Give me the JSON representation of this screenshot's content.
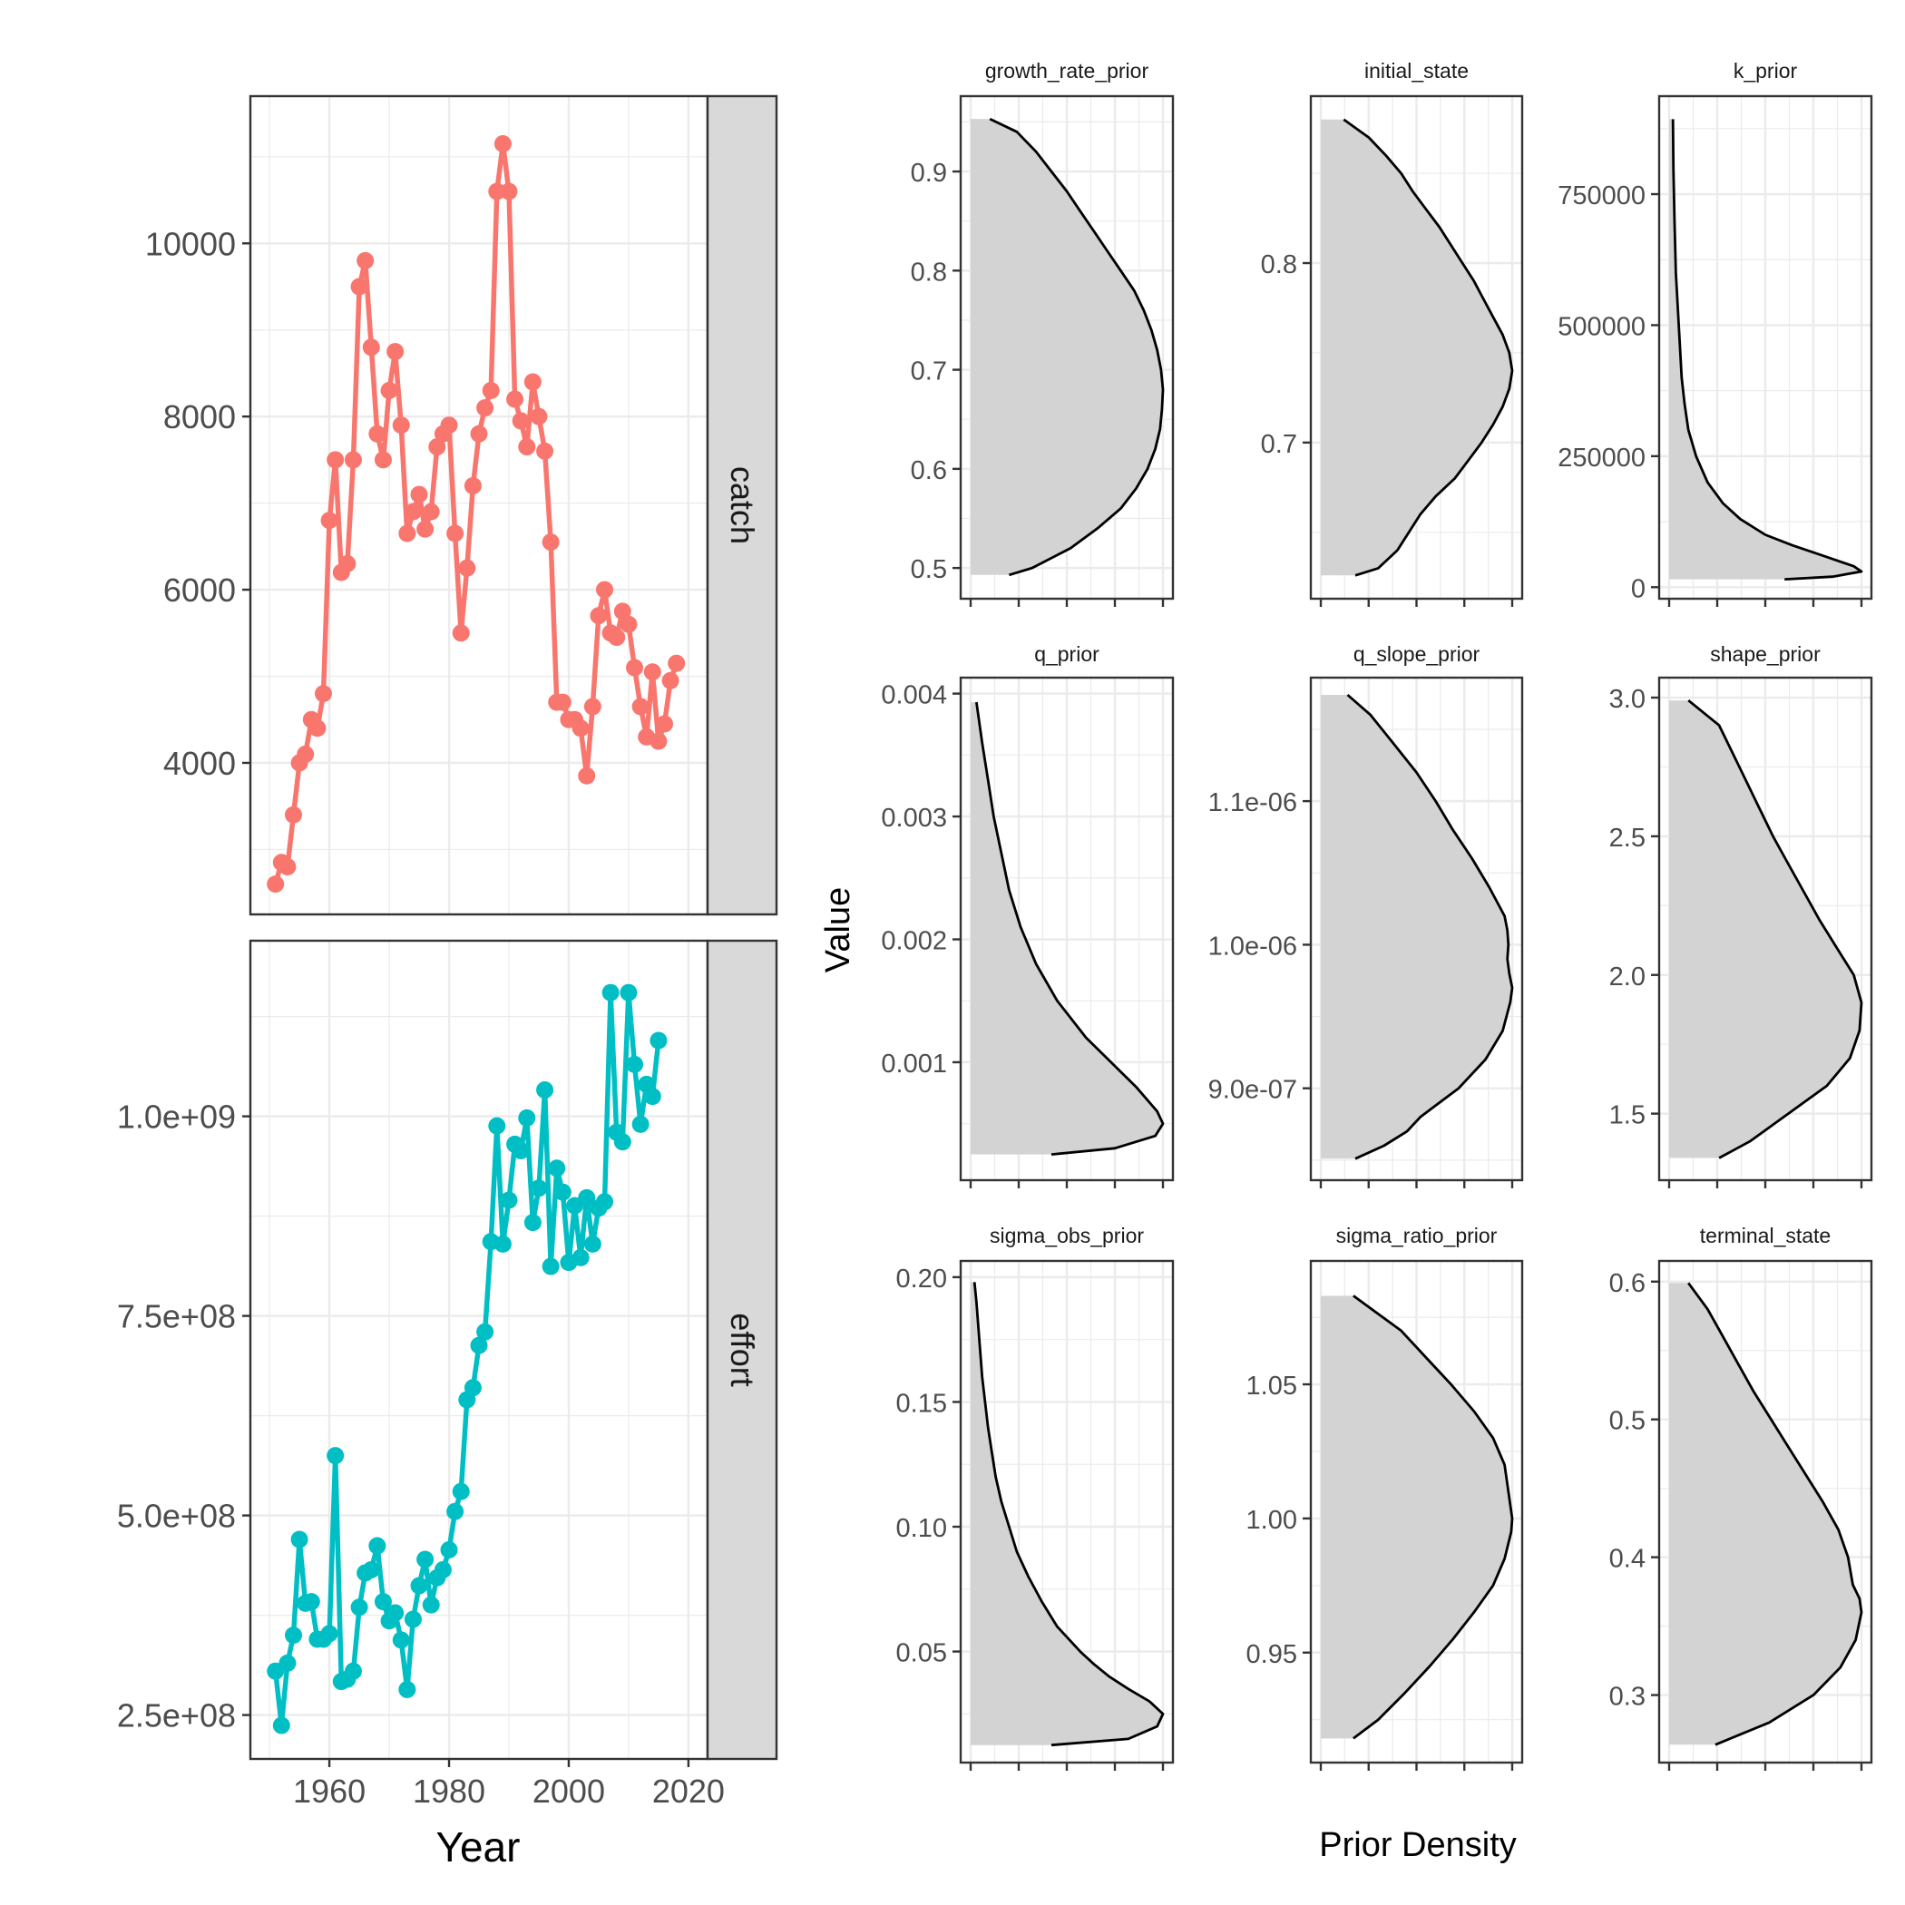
{
  "left_xlabel": "Year",
  "right_ylabel": "Value",
  "right_xlabel": "Prior Density",
  "colors": {
    "catch": "#F8766D",
    "effort": "#00BFC4",
    "strip": "#D9D9D9",
    "density_fill": "#D3D3D3",
    "density_line": "#000000",
    "grid": "#EBEBEB"
  },
  "chart_data": [
    {
      "type": "line",
      "facet": "catch",
      "x_axis": {
        "range": [
          1946.8,
          2023.2
        ],
        "ticks": [
          1960,
          1980,
          2000,
          2020
        ]
      },
      "y_axis": {
        "range": [
          2250,
          11700
        ],
        "ticks": [
          4000,
          6000,
          8000,
          10000
        ],
        "tick_labels": [
          "4000",
          "6000",
          "8000",
          "10000"
        ]
      },
      "x": [
        1951,
        1952,
        1953,
        1954,
        1955,
        1956,
        1957,
        1958,
        1959,
        1960,
        1961,
        1962,
        1963,
        1964,
        1965,
        1966,
        1967,
        1968,
        1969,
        1970,
        1971,
        1972,
        1973,
        1974,
        1975,
        1976,
        1977,
        1978,
        1979,
        1980,
        1981,
        1982,
        1983,
        1984,
        1985,
        1986,
        1987,
        1988,
        1989,
        1990,
        1991,
        1992,
        1993,
        1994,
        1995,
        1996,
        1997,
        1998,
        1999,
        2000,
        2001,
        2002,
        2003,
        2004,
        2005,
        2006,
        2007,
        2008,
        2009,
        2010,
        2011,
        2012,
        2013,
        2014,
        2015,
        2016,
        2017,
        2018
      ],
      "y": [
        2600,
        2850,
        2800,
        3400,
        4000,
        4100,
        4500,
        4400,
        4800,
        6800,
        7500,
        6200,
        6300,
        7500,
        9500,
        9800,
        8800,
        7800,
        7500,
        8300,
        8750,
        7900,
        6650,
        6900,
        7100,
        6700,
        6900,
        7650,
        7800,
        7900,
        6650,
        5500,
        6250,
        7200,
        7800,
        8100,
        8300,
        10600,
        11150,
        10600,
        8200,
        7950,
        7650,
        8400,
        8000,
        7600,
        6550,
        4700,
        4700,
        4500,
        4500,
        4400,
        3850,
        4650,
        5700,
        6000,
        5500,
        5450,
        5750,
        5600,
        5100,
        4650,
        4300,
        5050,
        4250,
        4450,
        4950,
        5150
      ]
    },
    {
      "type": "line",
      "facet": "effort",
      "x_axis": {
        "range": [
          1946.8,
          2023.2
        ],
        "ticks": [
          1960,
          1980,
          2000,
          2020
        ],
        "tick_labels": [
          "1960",
          "1980",
          "2000",
          "2020"
        ]
      },
      "y_axis": {
        "range": [
          195000000,
          1220000000
        ],
        "ticks": [
          250000000,
          500000000,
          750000000,
          1000000000
        ],
        "tick_labels": [
          "2.5e+08",
          "5.0e+08",
          "7.5e+08",
          "1.0e+09"
        ]
      },
      "x": [
        1951,
        1952,
        1953,
        1954,
        1955,
        1956,
        1957,
        1958,
        1959,
        1960,
        1961,
        1962,
        1963,
        1964,
        1965,
        1966,
        1967,
        1968,
        1969,
        1970,
        1971,
        1972,
        1973,
        1974,
        1975,
        1976,
        1977,
        1978,
        1979,
        1980,
        1981,
        1982,
        1983,
        1984,
        1985,
        1986,
        1987,
        1988,
        1989,
        1990,
        1991,
        1992,
        1993,
        1994,
        1995,
        1996,
        1997,
        1998,
        1999,
        2000,
        2001,
        2002,
        2003,
        2004,
        2005,
        2006,
        2007,
        2008,
        2009,
        2010,
        2011,
        2012,
        2013,
        2014,
        2015
      ],
      "y": [
        305000000,
        237000000,
        315000000,
        350000000,
        470000000,
        390000000,
        392000000,
        345000000,
        345000000,
        352000000,
        575000000,
        292000000,
        295000000,
        305000000,
        385000000,
        428000000,
        432000000,
        462000000,
        392000000,
        368000000,
        378000000,
        344000000,
        282000000,
        370000000,
        412000000,
        445000000,
        388000000,
        422000000,
        432000000,
        457000000,
        505000000,
        530000000,
        645000000,
        660000000,
        713000000,
        730000000,
        843000000,
        988000000,
        840000000,
        895000000,
        965000000,
        957000000,
        998000000,
        867000000,
        910000000,
        1033000000,
        812000000,
        935000000,
        905000000,
        817000000,
        888000000,
        823000000,
        898000000,
        840000000,
        885000000,
        893000000,
        1155000000,
        980000000,
        968000000,
        1155000000,
        1065000000,
        990000000,
        1040000000,
        1025000000,
        1095000000
      ]
    },
    {
      "type": "area",
      "facet": "growth_rate_prior",
      "y_axis": {
        "range": [
          0.469,
          0.976
        ],
        "ticks": [
          0.5,
          0.6,
          0.7,
          0.8,
          0.9
        ],
        "tick_labels": [
          "0.5",
          "0.6",
          "0.7",
          "0.8",
          "0.9"
        ]
      },
      "value": [
        0.493,
        0.5,
        0.52,
        0.54,
        0.56,
        0.58,
        0.6,
        0.62,
        0.64,
        0.66,
        0.68,
        0.7,
        0.72,
        0.74,
        0.76,
        0.78,
        0.8,
        0.82,
        0.84,
        0.86,
        0.88,
        0.9,
        0.92,
        0.94,
        0.953
      ],
      "density": [
        0.2,
        0.32,
        0.52,
        0.66,
        0.78,
        0.86,
        0.92,
        0.96,
        0.985,
        0.995,
        1.0,
        0.99,
        0.97,
        0.94,
        0.9,
        0.85,
        0.78,
        0.71,
        0.64,
        0.57,
        0.5,
        0.42,
        0.34,
        0.24,
        0.1
      ]
    },
    {
      "type": "area",
      "facet": "initial_state",
      "y_axis": {
        "range": [
          0.613,
          0.893
        ],
        "ticks": [
          0.7,
          0.8
        ],
        "tick_labels": [
          "0.7",
          "0.8"
        ]
      },
      "value": [
        0.626,
        0.63,
        0.64,
        0.65,
        0.66,
        0.67,
        0.68,
        0.69,
        0.7,
        0.71,
        0.72,
        0.73,
        0.74,
        0.75,
        0.76,
        0.77,
        0.78,
        0.79,
        0.8,
        0.81,
        0.82,
        0.83,
        0.84,
        0.85,
        0.86,
        0.87,
        0.88
      ],
      "density": [
        0.18,
        0.3,
        0.4,
        0.46,
        0.52,
        0.6,
        0.7,
        0.77,
        0.84,
        0.9,
        0.95,
        0.985,
        1.0,
        0.985,
        0.95,
        0.9,
        0.85,
        0.8,
        0.74,
        0.68,
        0.62,
        0.55,
        0.48,
        0.42,
        0.34,
        0.25,
        0.12
      ]
    },
    {
      "type": "area",
      "facet": "k_prior",
      "y_axis": {
        "range": [
          -22000,
          937000
        ],
        "ticks": [
          0,
          250000,
          500000,
          750000
        ],
        "tick_labels": [
          "0",
          "250000",
          "500000",
          "750000"
        ]
      },
      "value": [
        15000,
        20000,
        30000,
        40000,
        60000,
        80000,
        100000,
        130000,
        160000,
        200000,
        250000,
        300000,
        350000,
        400000,
        500000,
        600000,
        700000,
        800000,
        893000
      ],
      "density": [
        0.6,
        0.85,
        1.0,
        0.96,
        0.8,
        0.64,
        0.5,
        0.37,
        0.28,
        0.2,
        0.14,
        0.1,
        0.08,
        0.065,
        0.05,
        0.035,
        0.028,
        0.022,
        0.02
      ]
    },
    {
      "type": "area",
      "facet": "q_prior",
      "y_axis": {
        "range": [
          4e-05,
          0.00413
        ],
        "ticks": [
          0.001,
          0.002,
          0.003,
          0.004
        ],
        "tick_labels": [
          "0.001",
          "0.002",
          "0.003",
          "0.004"
        ]
      },
      "value": [
        0.00025,
        0.0003,
        0.0004,
        0.0005,
        0.0006,
        0.0008,
        0.001,
        0.0012,
        0.0015,
        0.0018,
        0.0021,
        0.0024,
        0.0027,
        0.003,
        0.0033,
        0.0036,
        0.00393
      ],
      "density": [
        0.42,
        0.75,
        0.96,
        1.0,
        0.97,
        0.86,
        0.73,
        0.6,
        0.45,
        0.34,
        0.26,
        0.2,
        0.16,
        0.12,
        0.09,
        0.06,
        0.03
      ]
    },
    {
      "type": "area",
      "facet": "q_slope_prior",
      "y_axis": {
        "range": [
          8.36e-07,
          1.186e-06
        ],
        "ticks": [
          9e-07,
          1e-06,
          1.1e-06
        ],
        "tick_labels": [
          "9.0e-07",
          "1.0e-06",
          "1.1e-06"
        ]
      },
      "value": [
        8.51e-07,
        8.6e-07,
        8.7e-07,
        8.8e-07,
        8.9e-07,
        9e-07,
        9.2e-07,
        9.4e-07,
        9.6e-07,
        9.7e-07,
        9.8e-07,
        9.9e-07,
        1e-06,
        1.01e-06,
        1.02e-06,
        1.04e-06,
        1.06e-06,
        1.08e-06,
        1.1e-06,
        1.12e-06,
        1.14e-06,
        1.16e-06,
        1.174e-06
      ],
      "density": [
        0.18,
        0.33,
        0.45,
        0.52,
        0.62,
        0.72,
        0.86,
        0.95,
        0.99,
        1.0,
        0.985,
        0.975,
        0.98,
        0.975,
        0.96,
        0.88,
        0.79,
        0.69,
        0.6,
        0.5,
        0.38,
        0.26,
        0.14
      ]
    },
    {
      "type": "area",
      "facet": "shape_prior",
      "y_axis": {
        "range": [
          1.26,
          3.072
        ],
        "ticks": [
          1.5,
          2.0,
          2.5,
          3.0
        ],
        "tick_labels": [
          "1.5",
          "2.0",
          "2.5",
          "3.0"
        ]
      },
      "value": [
        1.34,
        1.4,
        1.5,
        1.6,
        1.7,
        1.8,
        1.9,
        2.0,
        2.1,
        2.2,
        2.3,
        2.4,
        2.5,
        2.6,
        2.7,
        2.8,
        2.9,
        2.99
      ],
      "density": [
        0.26,
        0.42,
        0.62,
        0.82,
        0.94,
        0.99,
        1.0,
        0.96,
        0.87,
        0.78,
        0.7,
        0.62,
        0.54,
        0.47,
        0.4,
        0.33,
        0.26,
        0.1
      ]
    },
    {
      "type": "area",
      "facet": "sigma_obs_prior",
      "y_axis": {
        "range": [
          0.0055,
          0.2065
        ],
        "ticks": [
          0.05,
          0.1,
          0.15,
          0.2
        ],
        "tick_labels": [
          "0.05",
          "0.10",
          "0.15",
          "0.20"
        ]
      },
      "value": [
        0.0125,
        0.015,
        0.02,
        0.025,
        0.03,
        0.035,
        0.04,
        0.045,
        0.05,
        0.06,
        0.07,
        0.08,
        0.09,
        0.1,
        0.11,
        0.12,
        0.13,
        0.14,
        0.15,
        0.16,
        0.17,
        0.18,
        0.19,
        0.198
      ],
      "density": [
        0.42,
        0.82,
        0.97,
        1.0,
        0.93,
        0.82,
        0.72,
        0.64,
        0.57,
        0.45,
        0.37,
        0.3,
        0.24,
        0.2,
        0.16,
        0.13,
        0.11,
        0.09,
        0.075,
        0.06,
        0.05,
        0.04,
        0.03,
        0.02
      ]
    },
    {
      "type": "area",
      "facet": "sigma_ratio_prior",
      "y_axis": {
        "range": [
          0.909,
          1.096
        ],
        "ticks": [
          0.95,
          1.0,
          1.05
        ],
        "tick_labels": [
          "0.95",
          "1.00",
          "1.05"
        ]
      },
      "value": [
        0.918,
        0.925,
        0.935,
        0.945,
        0.955,
        0.965,
        0.975,
        0.985,
        0.995,
        1.0,
        1.01,
        1.02,
        1.03,
        1.04,
        1.05,
        1.06,
        1.07,
        1.083
      ],
      "density": [
        0.17,
        0.3,
        0.44,
        0.57,
        0.69,
        0.8,
        0.9,
        0.96,
        0.995,
        1.0,
        0.98,
        0.96,
        0.9,
        0.8,
        0.68,
        0.55,
        0.42,
        0.17
      ]
    },
    {
      "type": "area",
      "facet": "terminal_state",
      "y_axis": {
        "range": [
          0.251,
          0.615
        ],
        "ticks": [
          0.3,
          0.4,
          0.5,
          0.6
        ],
        "tick_labels": [
          "0.3",
          "0.4",
          "0.5",
          "0.6"
        ]
      },
      "value": [
        0.264,
        0.28,
        0.3,
        0.32,
        0.34,
        0.36,
        0.37,
        0.38,
        0.4,
        0.42,
        0.44,
        0.46,
        0.48,
        0.5,
        0.52,
        0.54,
        0.56,
        0.58,
        0.599
      ],
      "density": [
        0.24,
        0.52,
        0.75,
        0.89,
        0.97,
        1.0,
        0.99,
        0.955,
        0.93,
        0.88,
        0.8,
        0.71,
        0.62,
        0.53,
        0.44,
        0.36,
        0.28,
        0.2,
        0.1
      ]
    }
  ]
}
